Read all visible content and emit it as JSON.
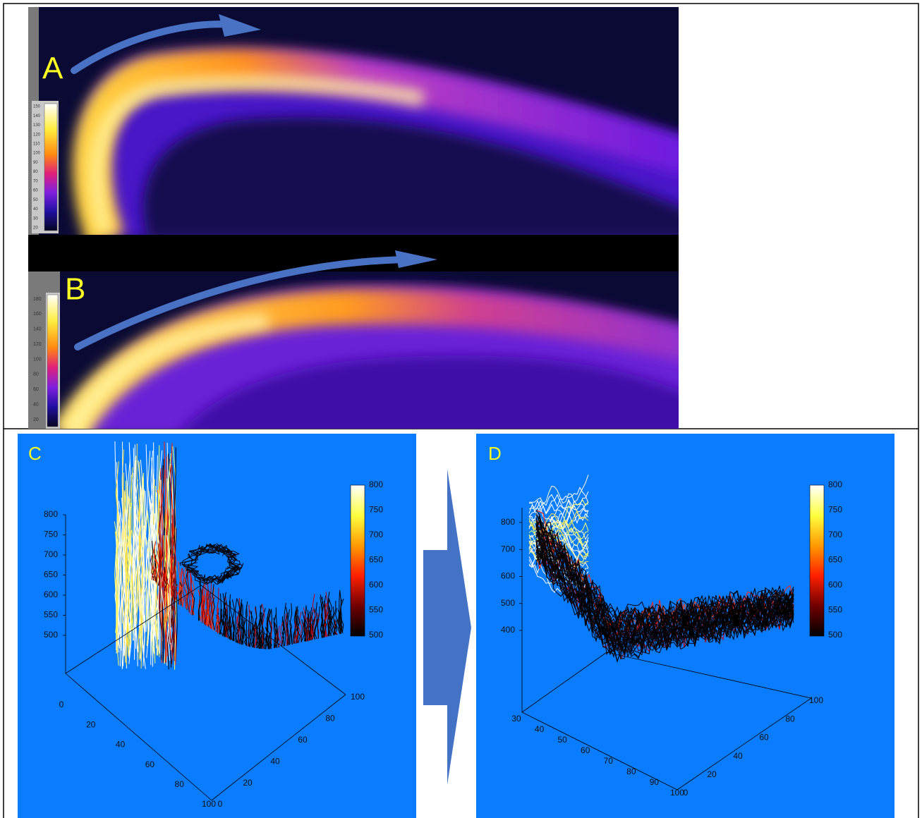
{
  "panel_a": {
    "label": "A",
    "colorbar_ticks": [
      150,
      140,
      130,
      120,
      110,
      100,
      90,
      80,
      70,
      60,
      50,
      40,
      30,
      20
    ]
  },
  "panel_b": {
    "label": "B",
    "colorbar_ticks": [
      180,
      160,
      140,
      120,
      100,
      80,
      60,
      40,
      20
    ]
  },
  "panel_c": {
    "label": "C",
    "z_ticks": [
      800,
      750,
      700,
      650,
      600,
      550,
      500
    ],
    "colorbar_ticks": [
      800,
      750,
      700,
      650,
      600,
      550,
      500
    ],
    "x_ticks": [
      0,
      20,
      40,
      60,
      80,
      100
    ],
    "y_ticks": [
      0,
      20,
      40,
      60,
      80,
      100
    ]
  },
  "panel_d": {
    "label": "D",
    "z_ticks": [
      800,
      700,
      600,
      500,
      400
    ],
    "colorbar_ticks": [
      800,
      750,
      700,
      650,
      600,
      550,
      500
    ],
    "x_ticks": [
      30,
      40,
      50,
      60,
      70,
      80,
      90,
      100
    ],
    "y_ticks": [
      0,
      20,
      40,
      60,
      80,
      100
    ]
  }
}
